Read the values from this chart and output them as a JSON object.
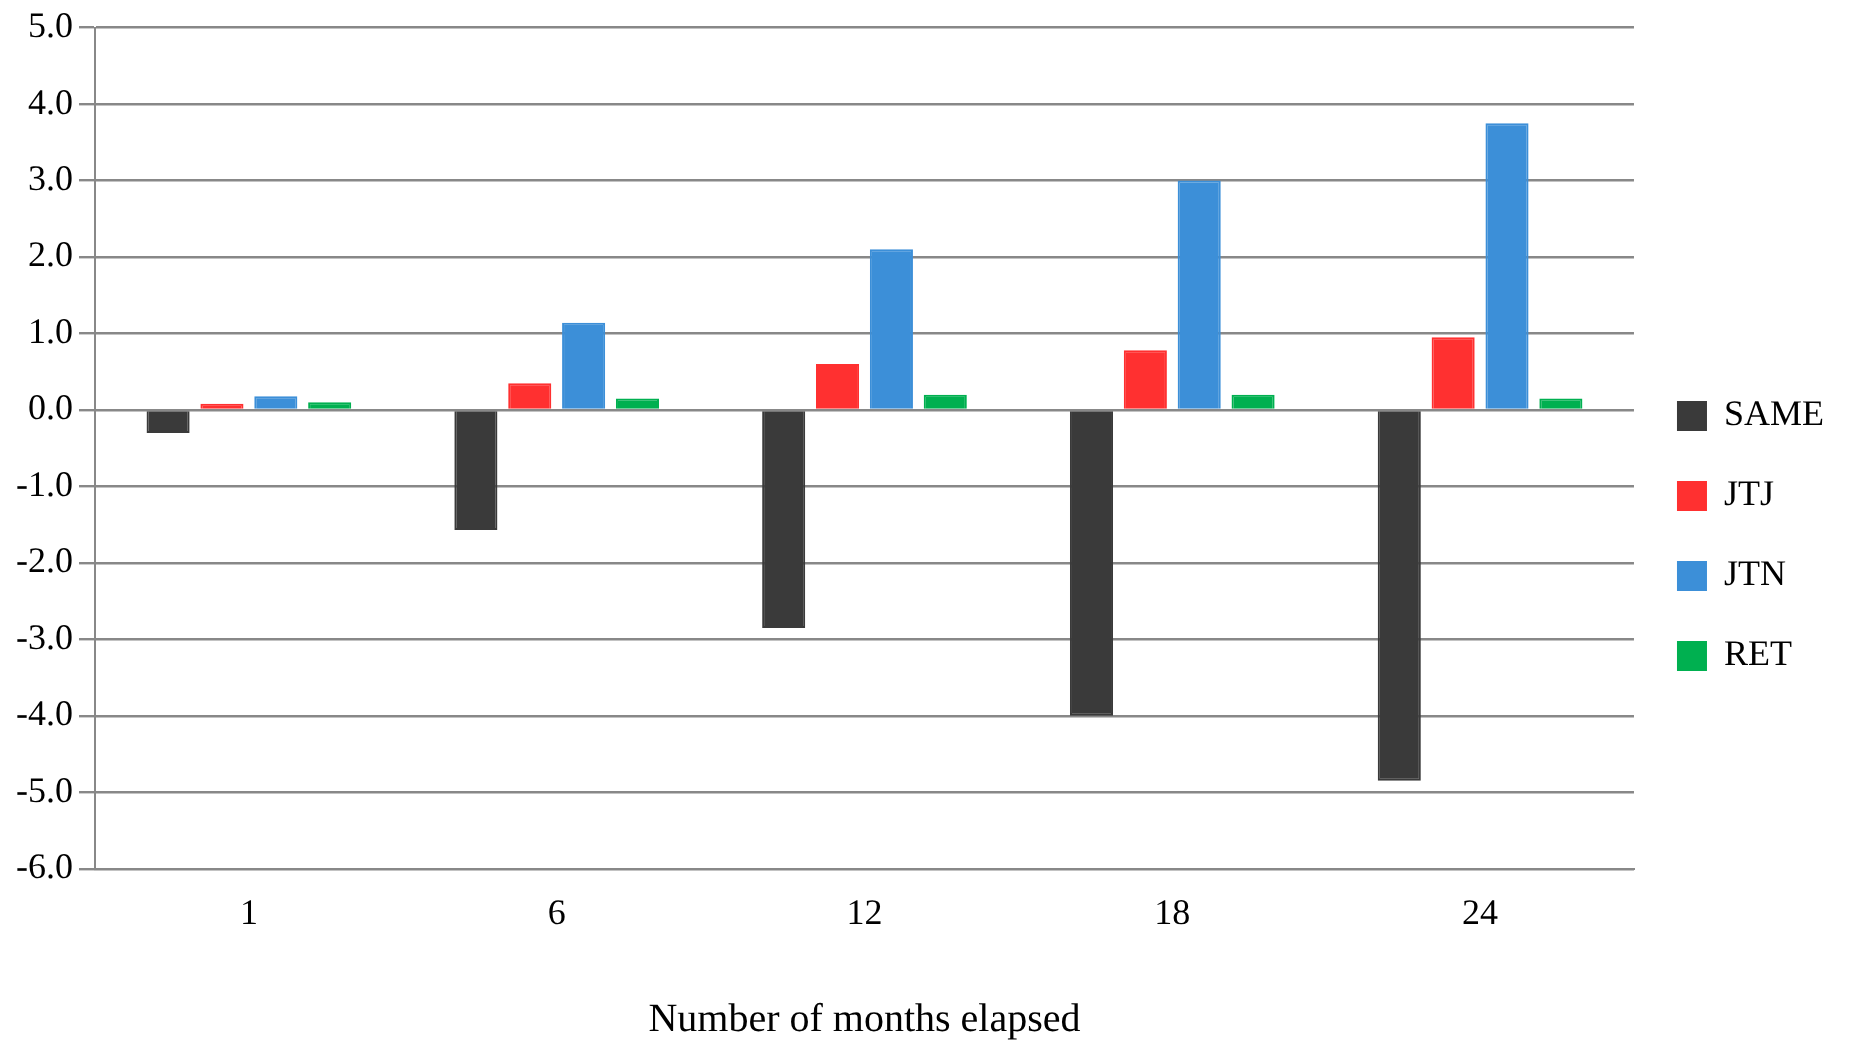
{
  "chart_data": {
    "type": "bar",
    "xlabel": "Number of months elapsed",
    "categories": [
      "1",
      "6",
      "12",
      "18",
      "24"
    ],
    "series": [
      {
        "name": "SAME",
        "color": "#3a3a3a",
        "values": [
          -0.3,
          -1.57,
          -2.85,
          -4.0,
          -4.85
        ]
      },
      {
        "name": "JTJ",
        "color": "#ff3030",
        "values": [
          0.08,
          0.35,
          0.6,
          0.78,
          0.95
        ]
      },
      {
        "name": "JTN",
        "color": "#3c8fd8",
        "values": [
          0.18,
          1.14,
          2.1,
          3.0,
          3.75
        ]
      },
      {
        "name": "RET",
        "color": "#00b050",
        "values": [
          0.1,
          0.15,
          0.2,
          0.2,
          0.15
        ]
      }
    ],
    "ylim": [
      -6,
      5
    ],
    "yticks": [
      {
        "value": -6,
        "label": "-6.0"
      },
      {
        "value": -5,
        "label": "-5.0"
      },
      {
        "value": -4,
        "label": "-4.0"
      },
      {
        "value": -3,
        "label": "-3.0"
      },
      {
        "value": -2,
        "label": "-2.0"
      },
      {
        "value": -1,
        "label": "-1.0"
      },
      {
        "value": 0,
        "label": "0.0"
      },
      {
        "value": 1,
        "label": "1.0"
      },
      {
        "value": 2,
        "label": "2.0"
      },
      {
        "value": 3,
        "label": "3.0"
      },
      {
        "value": 4,
        "label": "4.0"
      },
      {
        "value": 5,
        "label": "5.0"
      }
    ],
    "grid": "y",
    "legend": "right"
  }
}
